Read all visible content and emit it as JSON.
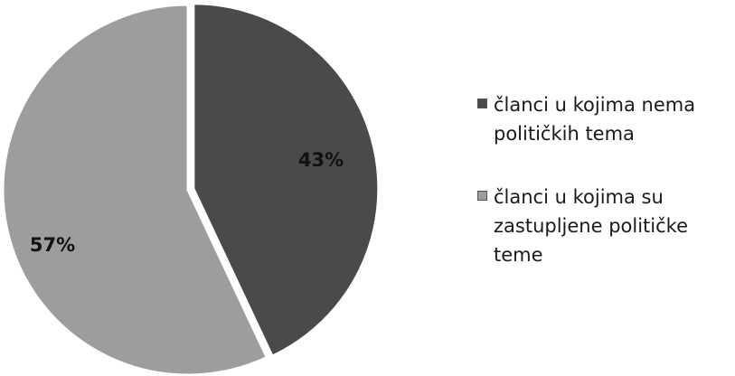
{
  "chart_data": {
    "type": "pie",
    "categories": [
      "članci u kojima nema\npolitičkih tema",
      "članci u kojima su\nzastupljene političke\nteme"
    ],
    "values": [
      43,
      57
    ],
    "data_labels": [
      "43%",
      "57%"
    ],
    "colors": [
      "#4a4a4a",
      "#9d9d9d"
    ],
    "title": "",
    "legend": "right"
  }
}
